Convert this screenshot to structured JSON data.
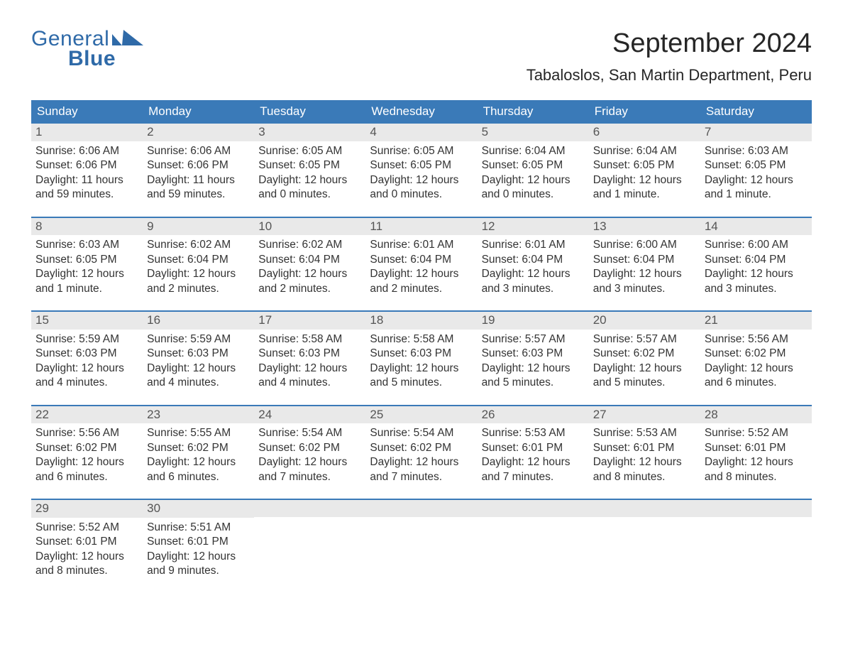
{
  "logo": {
    "line1": "General",
    "line2": "Blue",
    "mark_color": "#2f6aa8"
  },
  "title": "September 2024",
  "location": "Tabaloslos, San Martin Department, Peru",
  "colors": {
    "header_bg": "#3a7ab8",
    "header_text": "#ffffff",
    "daynum_bg": "#e9e9e9",
    "daynum_text": "#555555",
    "body_text": "#333333",
    "border": "#3a7ab8",
    "background": "#ffffff",
    "logo_color": "#2f6aa8"
  },
  "headers": [
    "Sunday",
    "Monday",
    "Tuesday",
    "Wednesday",
    "Thursday",
    "Friday",
    "Saturday"
  ],
  "weeks": [
    [
      {
        "num": "1",
        "sunrise": "Sunrise: 6:06 AM",
        "sunset": "Sunset: 6:06 PM",
        "daylight": "Daylight: 11 hours and 59 minutes."
      },
      {
        "num": "2",
        "sunrise": "Sunrise: 6:06 AM",
        "sunset": "Sunset: 6:06 PM",
        "daylight": "Daylight: 11 hours and 59 minutes."
      },
      {
        "num": "3",
        "sunrise": "Sunrise: 6:05 AM",
        "sunset": "Sunset: 6:05 PM",
        "daylight": "Daylight: 12 hours and 0 minutes."
      },
      {
        "num": "4",
        "sunrise": "Sunrise: 6:05 AM",
        "sunset": "Sunset: 6:05 PM",
        "daylight": "Daylight: 12 hours and 0 minutes."
      },
      {
        "num": "5",
        "sunrise": "Sunrise: 6:04 AM",
        "sunset": "Sunset: 6:05 PM",
        "daylight": "Daylight: 12 hours and 0 minutes."
      },
      {
        "num": "6",
        "sunrise": "Sunrise: 6:04 AM",
        "sunset": "Sunset: 6:05 PM",
        "daylight": "Daylight: 12 hours and 1 minute."
      },
      {
        "num": "7",
        "sunrise": "Sunrise: 6:03 AM",
        "sunset": "Sunset: 6:05 PM",
        "daylight": "Daylight: 12 hours and 1 minute."
      }
    ],
    [
      {
        "num": "8",
        "sunrise": "Sunrise: 6:03 AM",
        "sunset": "Sunset: 6:05 PM",
        "daylight": "Daylight: 12 hours and 1 minute."
      },
      {
        "num": "9",
        "sunrise": "Sunrise: 6:02 AM",
        "sunset": "Sunset: 6:04 PM",
        "daylight": "Daylight: 12 hours and 2 minutes."
      },
      {
        "num": "10",
        "sunrise": "Sunrise: 6:02 AM",
        "sunset": "Sunset: 6:04 PM",
        "daylight": "Daylight: 12 hours and 2 minutes."
      },
      {
        "num": "11",
        "sunrise": "Sunrise: 6:01 AM",
        "sunset": "Sunset: 6:04 PM",
        "daylight": "Daylight: 12 hours and 2 minutes."
      },
      {
        "num": "12",
        "sunrise": "Sunrise: 6:01 AM",
        "sunset": "Sunset: 6:04 PM",
        "daylight": "Daylight: 12 hours and 3 minutes."
      },
      {
        "num": "13",
        "sunrise": "Sunrise: 6:00 AM",
        "sunset": "Sunset: 6:04 PM",
        "daylight": "Daylight: 12 hours and 3 minutes."
      },
      {
        "num": "14",
        "sunrise": "Sunrise: 6:00 AM",
        "sunset": "Sunset: 6:04 PM",
        "daylight": "Daylight: 12 hours and 3 minutes."
      }
    ],
    [
      {
        "num": "15",
        "sunrise": "Sunrise: 5:59 AM",
        "sunset": "Sunset: 6:03 PM",
        "daylight": "Daylight: 12 hours and 4 minutes."
      },
      {
        "num": "16",
        "sunrise": "Sunrise: 5:59 AM",
        "sunset": "Sunset: 6:03 PM",
        "daylight": "Daylight: 12 hours and 4 minutes."
      },
      {
        "num": "17",
        "sunrise": "Sunrise: 5:58 AM",
        "sunset": "Sunset: 6:03 PM",
        "daylight": "Daylight: 12 hours and 4 minutes."
      },
      {
        "num": "18",
        "sunrise": "Sunrise: 5:58 AM",
        "sunset": "Sunset: 6:03 PM",
        "daylight": "Daylight: 12 hours and 5 minutes."
      },
      {
        "num": "19",
        "sunrise": "Sunrise: 5:57 AM",
        "sunset": "Sunset: 6:03 PM",
        "daylight": "Daylight: 12 hours and 5 minutes."
      },
      {
        "num": "20",
        "sunrise": "Sunrise: 5:57 AM",
        "sunset": "Sunset: 6:02 PM",
        "daylight": "Daylight: 12 hours and 5 minutes."
      },
      {
        "num": "21",
        "sunrise": "Sunrise: 5:56 AM",
        "sunset": "Sunset: 6:02 PM",
        "daylight": "Daylight: 12 hours and 6 minutes."
      }
    ],
    [
      {
        "num": "22",
        "sunrise": "Sunrise: 5:56 AM",
        "sunset": "Sunset: 6:02 PM",
        "daylight": "Daylight: 12 hours and 6 minutes."
      },
      {
        "num": "23",
        "sunrise": "Sunrise: 5:55 AM",
        "sunset": "Sunset: 6:02 PM",
        "daylight": "Daylight: 12 hours and 6 minutes."
      },
      {
        "num": "24",
        "sunrise": "Sunrise: 5:54 AM",
        "sunset": "Sunset: 6:02 PM",
        "daylight": "Daylight: 12 hours and 7 minutes."
      },
      {
        "num": "25",
        "sunrise": "Sunrise: 5:54 AM",
        "sunset": "Sunset: 6:02 PM",
        "daylight": "Daylight: 12 hours and 7 minutes."
      },
      {
        "num": "26",
        "sunrise": "Sunrise: 5:53 AM",
        "sunset": "Sunset: 6:01 PM",
        "daylight": "Daylight: 12 hours and 7 minutes."
      },
      {
        "num": "27",
        "sunrise": "Sunrise: 5:53 AM",
        "sunset": "Sunset: 6:01 PM",
        "daylight": "Daylight: 12 hours and 8 minutes."
      },
      {
        "num": "28",
        "sunrise": "Sunrise: 5:52 AM",
        "sunset": "Sunset: 6:01 PM",
        "daylight": "Daylight: 12 hours and 8 minutes."
      }
    ],
    [
      {
        "num": "29",
        "sunrise": "Sunrise: 5:52 AM",
        "sunset": "Sunset: 6:01 PM",
        "daylight": "Daylight: 12 hours and 8 minutes."
      },
      {
        "num": "30",
        "sunrise": "Sunrise: 5:51 AM",
        "sunset": "Sunset: 6:01 PM",
        "daylight": "Daylight: 12 hours and 9 minutes."
      },
      {
        "num": "",
        "sunrise": "",
        "sunset": "",
        "daylight": ""
      },
      {
        "num": "",
        "sunrise": "",
        "sunset": "",
        "daylight": ""
      },
      {
        "num": "",
        "sunrise": "",
        "sunset": "",
        "daylight": ""
      },
      {
        "num": "",
        "sunrise": "",
        "sunset": "",
        "daylight": ""
      },
      {
        "num": "",
        "sunrise": "",
        "sunset": "",
        "daylight": ""
      }
    ]
  ]
}
